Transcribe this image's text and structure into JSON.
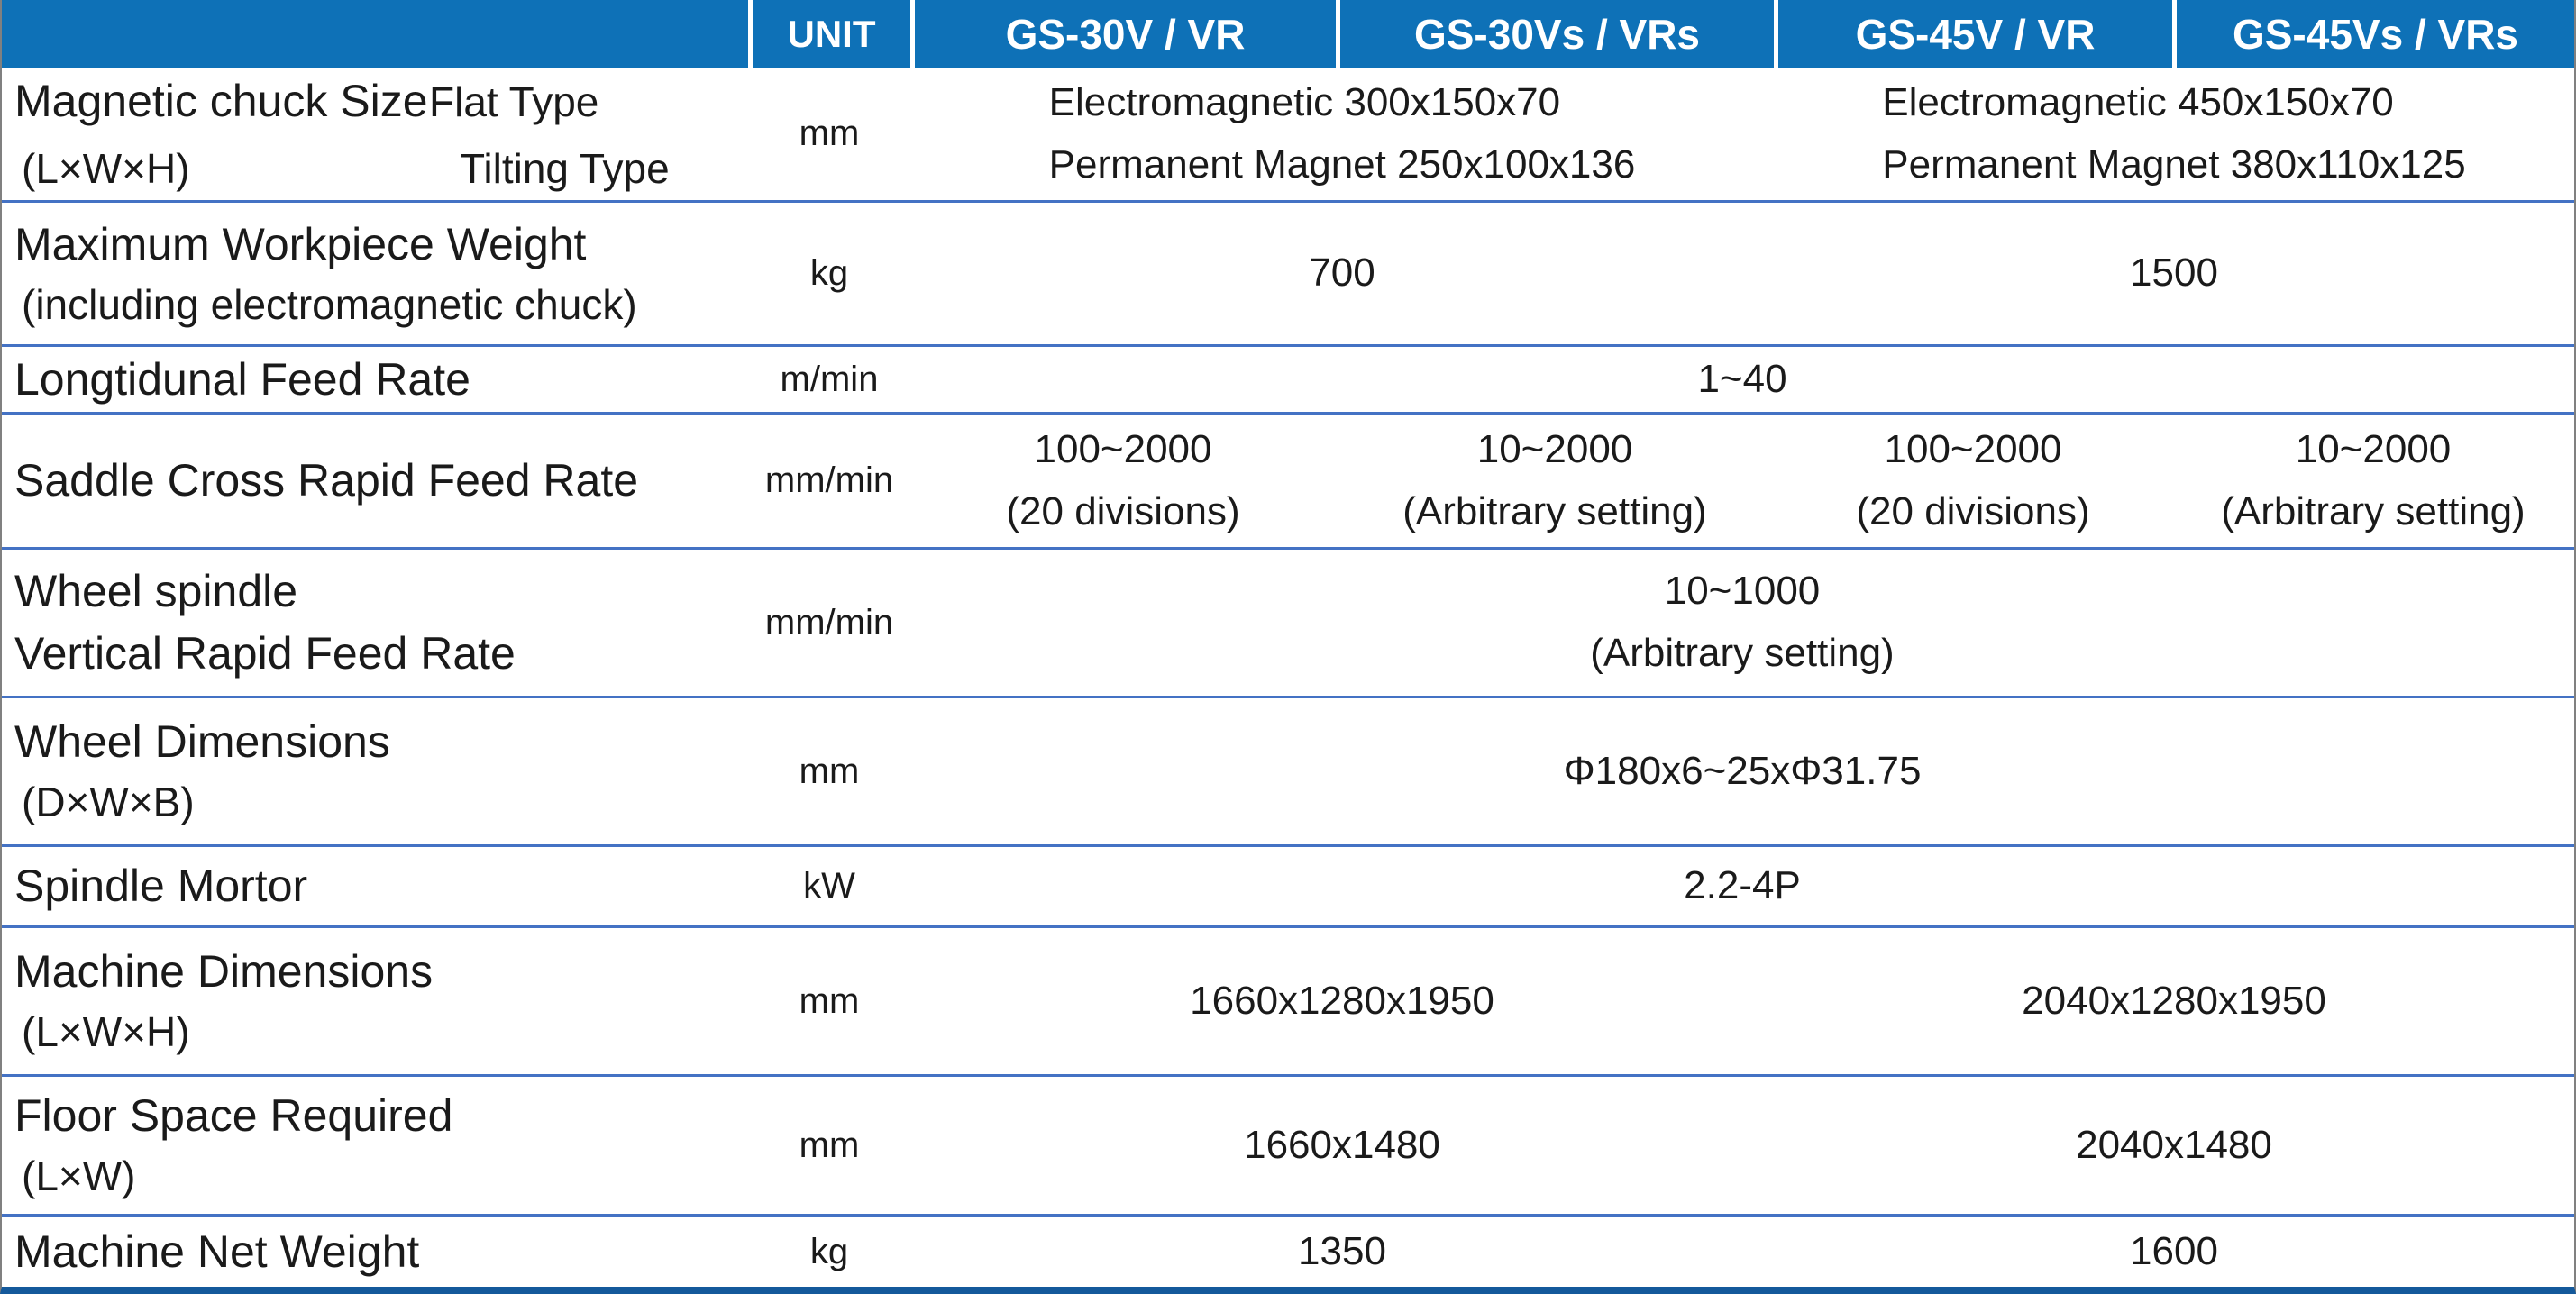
{
  "table": {
    "header": {
      "corner": "",
      "unit_label": "UNIT",
      "models": [
        "GS-30V / VR",
        "GS-30Vs / VRs",
        "GS-45V / VR",
        "GS-45Vs / VRs"
      ]
    },
    "colors": {
      "header_background": "#0e71b7",
      "header_text": "#ffffff",
      "row_divider": "#4472c4",
      "bottom_border": "#14599b",
      "body_text": "#1a1a1a"
    },
    "rows": [
      {
        "label": [
          "Magnetic chuck Size",
          "(L×W×H)"
        ],
        "sub_labels": [
          "Flat Type",
          "Tilting Type"
        ],
        "unit": "mm",
        "values": [
          {
            "lines": [
              "Electromagnetic 300x150x70",
              "Permanent Magnet 250x100x136"
            ]
          },
          {
            "lines": [
              "Electromagnetic 450x150x70",
              "Permanent Magnet 380x110x125"
            ]
          }
        ]
      },
      {
        "label": [
          "Maximum Workpiece Weight",
          "(including electromagnetic chuck)"
        ],
        "unit": "kg",
        "values": [
          {
            "lines": [
              "700"
            ]
          },
          {
            "lines": [
              "1500"
            ]
          }
        ]
      },
      {
        "label": [
          "Longtidunal Feed Rate"
        ],
        "unit": "m/min",
        "values": [
          {
            "lines": [
              "1~40"
            ]
          }
        ]
      },
      {
        "label": [
          "Saddle Cross Rapid Feed Rate"
        ],
        "unit": "mm/min",
        "values": [
          {
            "lines": [
              "100~2000",
              "(20 divisions)"
            ]
          },
          {
            "lines": [
              "10~2000",
              "(Arbitrary setting)"
            ]
          },
          {
            "lines": [
              "100~2000",
              "(20 divisions)"
            ]
          },
          {
            "lines": [
              "10~2000",
              "(Arbitrary setting)"
            ]
          }
        ]
      },
      {
        "label": [
          "Wheel spindle",
          "Vertical Rapid Feed Rate"
        ],
        "unit": "mm/min",
        "values": [
          {
            "lines": [
              "10~1000",
              "(Arbitrary setting)"
            ]
          }
        ]
      },
      {
        "label": [
          "Wheel Dimensions",
          "(D×W×B)"
        ],
        "unit": "mm",
        "values": [
          {
            "lines": [
              "Φ180x6~25xΦ31.75"
            ]
          }
        ]
      },
      {
        "label": [
          "Spindle Mortor"
        ],
        "unit": "kW",
        "values": [
          {
            "lines": [
              "2.2-4P"
            ]
          }
        ]
      },
      {
        "label": [
          "Machine Dimensions",
          "(L×W×H)"
        ],
        "unit": "mm",
        "values": [
          {
            "lines": [
              "1660x1280x1950"
            ]
          },
          {
            "lines": [
              "2040x1280x1950"
            ]
          }
        ]
      },
      {
        "label": [
          "Floor Space Required",
          "(L×W)"
        ],
        "unit": "mm",
        "values": [
          {
            "lines": [
              "1660x1480"
            ]
          },
          {
            "lines": [
              "2040x1480"
            ]
          }
        ]
      },
      {
        "label": [
          "Machine Net Weight"
        ],
        "unit": "kg",
        "values": [
          {
            "lines": [
              "1350"
            ]
          },
          {
            "lines": [
              "1600"
            ]
          }
        ]
      }
    ]
  }
}
